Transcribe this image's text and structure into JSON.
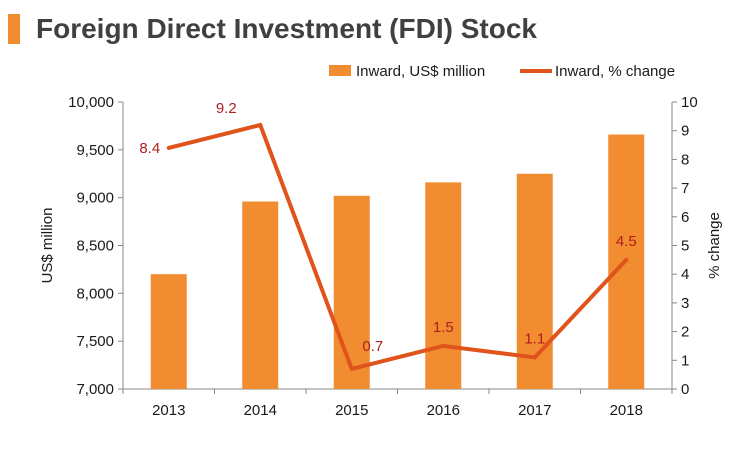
{
  "title": "Foreign Direct Investment (FDI) Stock",
  "colors": {
    "bar": "#F28C30",
    "line": "#E0531A",
    "label": "#B01E1E",
    "title_bar": "#F28C30",
    "axis": "#888888"
  },
  "chart_data": {
    "type": "bar+line",
    "categories": [
      "2013",
      "2014",
      "2015",
      "2016",
      "2017",
      "2018"
    ],
    "series": [
      {
        "name": "Inward, US$ million",
        "type": "bar",
        "axis": "left",
        "values": [
          8200,
          8960,
          9020,
          9160,
          9250,
          9660
        ]
      },
      {
        "name": "Inward, % change",
        "type": "line",
        "axis": "right",
        "values": [
          8.4,
          9.2,
          0.7,
          1.5,
          1.1,
          4.5
        ],
        "labels": [
          "8.4",
          "9.2",
          "0.7",
          "1.5",
          "1.1",
          "4.5"
        ]
      }
    ],
    "ylabel_left": "US$ million",
    "ylabel_right": "% change",
    "ylim_left": [
      7000,
      10000
    ],
    "ylim_right": [
      0,
      10
    ],
    "yticks_left": [
      "7,000",
      "7,500",
      "8,000",
      "8,500",
      "9,000",
      "9,500",
      "10,000"
    ],
    "yticks_right": [
      "0",
      "1",
      "2",
      "3",
      "4",
      "5",
      "6",
      "7",
      "8",
      "9",
      "10"
    ],
    "legend_position": "top-right",
    "grid": false
  }
}
